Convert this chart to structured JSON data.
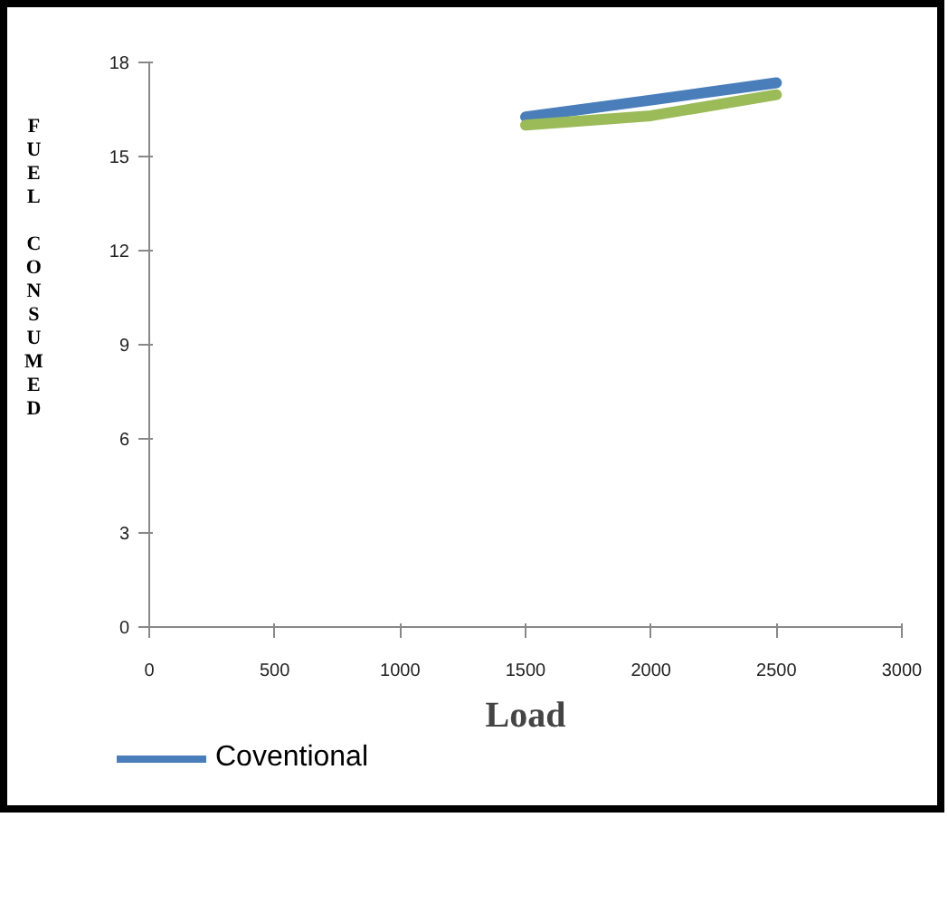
{
  "chart_data": {
    "type": "line",
    "xlabel": "Load",
    "ylabel": "FUEL CONSUMED",
    "x": [
      1500,
      2000,
      2500
    ],
    "series": [
      {
        "name": "Coventional",
        "color": "#4a7ebb",
        "values": [
          16.26,
          16.8,
          17.35
        ]
      },
      {
        "color": "#9bbb59",
        "values": [
          16.0,
          16.3,
          16.97
        ]
      }
    ],
    "xlim": [
      0,
      3000
    ],
    "xticks": [
      0,
      500,
      1000,
      1500,
      2000,
      2500,
      3000
    ],
    "ylim": [
      0,
      18
    ],
    "yticks": [
      0,
      3,
      6,
      9,
      12,
      15,
      18
    ],
    "grid": false,
    "legend": "bottom",
    "marker": "none",
    "line_style": "solid"
  }
}
